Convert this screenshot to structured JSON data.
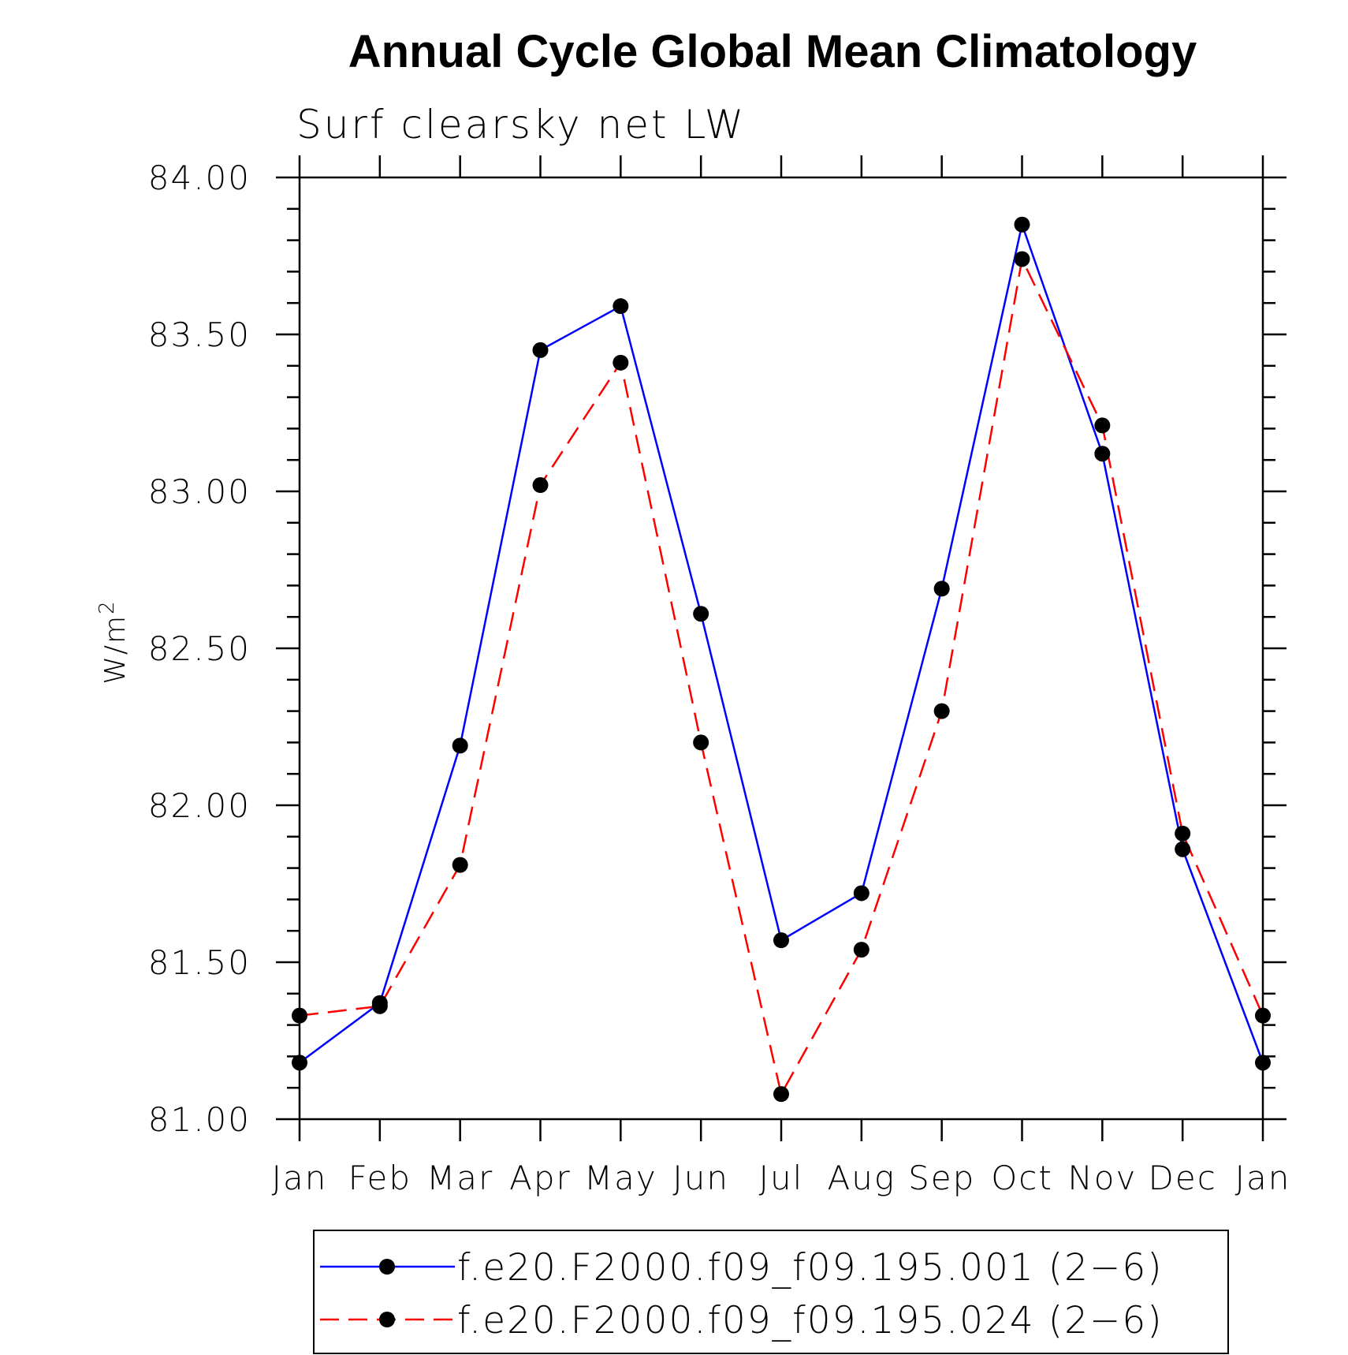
{
  "chart_data": {
    "type": "line",
    "title": "Annual Cycle Global Mean Climatology",
    "subtitle": "Surf clearsky net LW",
    "ylabel": "W/m",
    "ylabel_sup": "2",
    "xlabel": "",
    "categories": [
      "Jan",
      "Feb",
      "Mar",
      "Apr",
      "May",
      "Jun",
      "Jul",
      "Aug",
      "Sep",
      "Oct",
      "Nov",
      "Dec",
      "Jan"
    ],
    "ylim": [
      81.0,
      84.0
    ],
    "yticks": [
      "81.00",
      "81.50",
      "82.00",
      "82.50",
      "83.00",
      "83.50",
      "84.00"
    ],
    "grid": false,
    "legend_position": "bottom",
    "series": [
      {
        "name": "f.e20.F2000.f09_f09.195.001 (2−6)",
        "color": "#0000ff",
        "line_style": "solid",
        "marker": "filled-circle",
        "values": [
          81.18,
          81.37,
          82.19,
          83.45,
          83.59,
          82.61,
          81.57,
          81.72,
          82.69,
          83.85,
          83.12,
          81.86,
          81.18
        ]
      },
      {
        "name": "f.e20.F2000.f09_f09.195.024 (2−6)",
        "color": "#ff0000",
        "line_style": "dashed",
        "marker": "filled-circle",
        "values": [
          81.33,
          81.36,
          81.81,
          83.02,
          83.41,
          82.2,
          81.08,
          81.54,
          82.3,
          83.74,
          83.21,
          81.91,
          81.33
        ]
      }
    ]
  }
}
